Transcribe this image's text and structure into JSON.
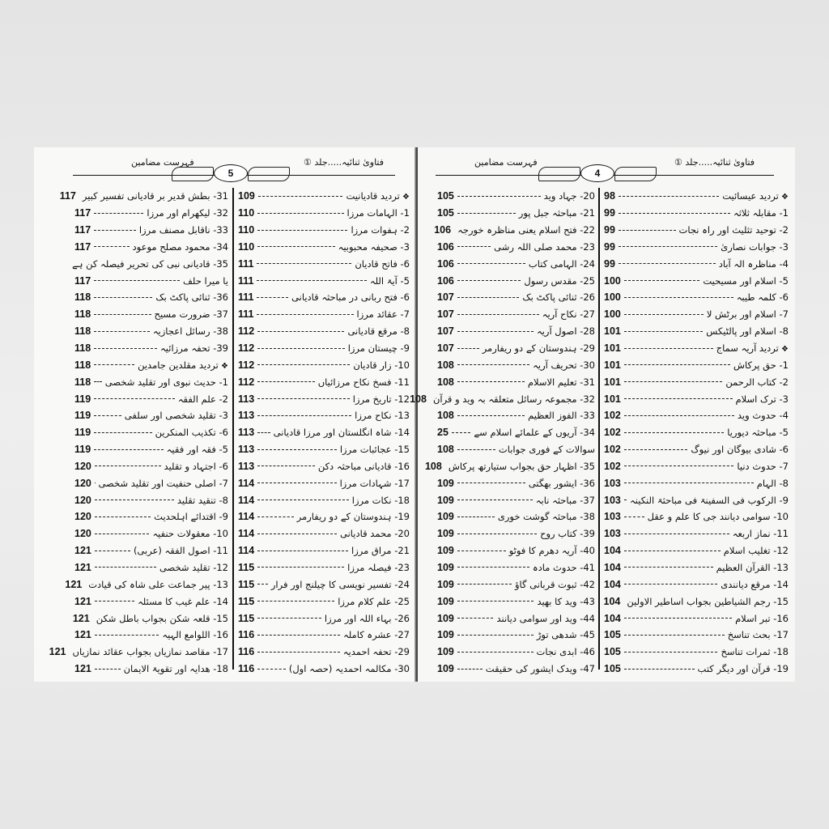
{
  "pages": [
    {
      "page_number": "5",
      "header_title": "فہرست مضامین",
      "book_title": "فتاویٰ ثنائیہ.....جلد ①",
      "right_column": [
        {
          "text": "تردید قادیانیت",
          "page": "109",
          "heading": true
        },
        {
          "text": "1- الہامات مرزا",
          "page": "110"
        },
        {
          "text": "2- ہفوات مرزا",
          "page": "110"
        },
        {
          "text": "3- صحیفہ محبوبیہ",
          "page": "110"
        },
        {
          "text": "6- فاتح قادیان",
          "page": "111"
        },
        {
          "text": "5- آیۃ اللہ",
          "page": "111"
        },
        {
          "text": "6- فتح ربانی در مباحثہ قادیانی",
          "page": "111"
        },
        {
          "text": "7- عقائد مرزا",
          "page": "111"
        },
        {
          "text": "8- مرقع قادیانی",
          "page": "112"
        },
        {
          "text": "9- چیستان مرزا",
          "page": "112"
        },
        {
          "text": "10- زار قادیان",
          "page": "112"
        },
        {
          "text": "11- فسخ نکاح مرزائیاں",
          "page": "112"
        },
        {
          "text": "12- تاریخ مرزا",
          "page": "113"
        },
        {
          "text": "13- نکاح مرزا",
          "page": "113"
        },
        {
          "text": "14- شاہ انگلستان اور مرزا قادیانی",
          "page": "113"
        },
        {
          "text": "15- عجائبات مرزا",
          "page": "113"
        },
        {
          "text": "16- قادیانی مباحثہ دکن",
          "page": "113"
        },
        {
          "text": "17- شہادات مرزا",
          "page": "114"
        },
        {
          "text": "18- نکات مرزا",
          "page": "114"
        },
        {
          "text": "19- ہندوستان کے دو ریفارمر",
          "page": "114"
        },
        {
          "text": "20- محمد قادیانی",
          "page": "114"
        },
        {
          "text": "21- مراق مرزا",
          "page": "114"
        },
        {
          "text": "23- فیصلہ مرزا",
          "page": "115"
        },
        {
          "text": "24- تفسیر نویسی کا چیلنج اور فرار",
          "page": "115"
        },
        {
          "text": "25- علم کلام مرزا",
          "page": "115"
        },
        {
          "text": "26- بہاء اللہ اور مرزا",
          "page": "115"
        },
        {
          "text": "27- عشرہ کاملہ",
          "page": "116"
        },
        {
          "text": "29- تحفہ احمدیہ",
          "page": "116"
        },
        {
          "text": "30- مکالمہ احمدیہ (حصہ اول)",
          "page": "116"
        }
      ],
      "left_column": [
        {
          "text": "31- بطش قدیر بر قادیانی تفسیر کبیر",
          "page": "117"
        },
        {
          "text": "32- لیکھرام اور مرزا",
          "page": "117"
        },
        {
          "text": "33- ناقابل مصنف مرزا",
          "page": "117"
        },
        {
          "text": "34- محمود مصلح موعود",
          "page": "117"
        },
        {
          "text": "35- قادیانی نبی کی تحریر فیصلہ کن ہے",
          "page": ""
        },
        {
          "text": "یا میرا حلف",
          "page": "117"
        },
        {
          "text": "36- ثنائی پاکٹ بک",
          "page": "118"
        },
        {
          "text": "37- ضرورت مسیح",
          "page": "118"
        },
        {
          "text": "38- رسائل اعجازیہ",
          "page": "118"
        },
        {
          "text": "39- تحفہ مرزائیہ",
          "page": "118"
        },
        {
          "text": "تردید مقلدین جامدین",
          "page": "118",
          "heading": true
        },
        {
          "text": "1- حدیث نبوی اور تقلید شخصی",
          "page": "118"
        },
        {
          "text": "2- علم الفقہ",
          "page": "119"
        },
        {
          "text": "3- تقلید شخصی اور سلفی",
          "page": "119"
        },
        {
          "text": "6- تکذیب المنکرین",
          "page": "119"
        },
        {
          "text": "5- فقہ اور فقیہ",
          "page": "119"
        },
        {
          "text": "6- اجتہاد و تقلید",
          "page": "120"
        },
        {
          "text": "7- اصلی حنفیت اور تقلید شخصی",
          "page": "120"
        },
        {
          "text": "8- تنقید تقلید",
          "page": "120"
        },
        {
          "text": "9- اقتدائے اہلحدیث",
          "page": "120"
        },
        {
          "text": "10- معقولات حنفیہ",
          "page": "120"
        },
        {
          "text": "11- اصول الفقہ (عربی)",
          "page": "121"
        },
        {
          "text": "12- تقلید شخصی",
          "page": "121"
        },
        {
          "text": "13- پیر جماعت علی شاہ کی قیادت",
          "page": "121"
        },
        {
          "text": "14- علم غیب کا مسئلہ",
          "page": "121"
        },
        {
          "text": "15- قلعہ شکن بجواب باطل شکن",
          "page": "121"
        },
        {
          "text": "16- اللوامع الہیہ",
          "page": "121"
        },
        {
          "text": "17- مقاصد نمازیاں بجواب عقائد نمازیاں",
          "page": "121"
        },
        {
          "text": "18- ھدایہ اور تقویۃ الایمان",
          "page": "121"
        }
      ]
    },
    {
      "page_number": "4",
      "header_title": "فہرست مضامین",
      "book_title": "فتاویٰ ثنائیہ.....جلد ①",
      "right_column": [
        {
          "text": "تردید عیسائیت",
          "page": "98",
          "heading": true
        },
        {
          "text": "1- مقابلہ ثلاثہ",
          "page": "99"
        },
        {
          "text": "2- توحید تثلیث اور راہ نجات",
          "page": "99"
        },
        {
          "text": "3- جوابات نصاریٰ",
          "page": "99"
        },
        {
          "text": "4- مناظرہ الہ آباد",
          "page": "99"
        },
        {
          "text": "5- اسلام اور مسیحیت",
          "page": "100"
        },
        {
          "text": "6- کلمہ طیبہ",
          "page": "100"
        },
        {
          "text": "7- اسلام اور برٹش لا",
          "page": "100"
        },
        {
          "text": "8- اسلام اور پالٹیکس",
          "page": "101"
        },
        {
          "text": "تردید آریہ سماج",
          "page": "101",
          "heading": true
        },
        {
          "text": "1- حق پرکاش",
          "page": "101"
        },
        {
          "text": "2- کتاب الرحمن",
          "page": "101"
        },
        {
          "text": "3- ترک اسلام",
          "page": "101"
        },
        {
          "text": "4- حدوث وید",
          "page": "102"
        },
        {
          "text": "5- مباحثہ دیوریا",
          "page": "102"
        },
        {
          "text": "6- شادی بیوگان اور نیوگ",
          "page": "102"
        },
        {
          "text": "7- حدوث دنیا",
          "page": "102"
        },
        {
          "text": "8- الہام",
          "page": "103"
        },
        {
          "text": "9- الرکوب فی السفینۃ فی مباحثۃ النکینہ",
          "page": "103"
        },
        {
          "text": "10- سوامی دیانند جی کا علم و عقل",
          "page": "103"
        },
        {
          "text": "11- نماز اربعہ",
          "page": "103"
        },
        {
          "text": "12- تغلیب اسلام",
          "page": "104"
        },
        {
          "text": "13- القرآن العظیم",
          "page": "104"
        },
        {
          "text": "14- مرقع دیانندی",
          "page": "104"
        },
        {
          "text": "15- رجم الشیاطین بجواب اساطیر الاولین",
          "page": "104"
        },
        {
          "text": "16- تبر اسلام",
          "page": "104"
        },
        {
          "text": "17- بحث تناسخ",
          "page": "105"
        },
        {
          "text": "18- ثمرات تناسخ",
          "page": "105"
        },
        {
          "text": "19- قرآن اور دیگر کتب",
          "page": "105"
        }
      ],
      "left_column": [
        {
          "text": "20- جہاد وید",
          "page": "105"
        },
        {
          "text": "21- مباحثہ جبل پور",
          "page": "105"
        },
        {
          "text": "22- فتح اسلام یعنی مناظرہ خورجہ",
          "page": "106"
        },
        {
          "text": "23- محمد صلی اللہ رشی",
          "page": "106"
        },
        {
          "text": "24- الہامی کتاب",
          "page": "106"
        },
        {
          "text": "25- مقدس رسول",
          "page": "106"
        },
        {
          "text": "26- ثنائی پاکٹ بک",
          "page": "107"
        },
        {
          "text": "27- نکاح آریہ",
          "page": "107"
        },
        {
          "text": "28- اصول آریہ",
          "page": "107"
        },
        {
          "text": "29- ہندوستان کے دو ریفارمر",
          "page": "107"
        },
        {
          "text": "30- تحریف آریہ",
          "page": "108"
        },
        {
          "text": "31- تعلیم الاسلام",
          "page": "108"
        },
        {
          "text": "32- مجموعہ رسائل متعلقہ بہ وید و قرآن",
          "page": "108"
        },
        {
          "text": "33- الفوز العظیم",
          "page": "108"
        },
        {
          "text": "34- آریوں کے علمائے اسلام سے",
          "page": "25"
        },
        {
          "text": "سوالات کے فوری جوابات",
          "page": "108"
        },
        {
          "text": "35- اظہار حق بجواب ستیارتھ پرکاش",
          "page": "108"
        },
        {
          "text": "36- ایشور بھگتی",
          "page": "109"
        },
        {
          "text": "37- مباحثہ نابہ",
          "page": "109"
        },
        {
          "text": "38- مباحثہ گوشت خوری",
          "page": "109"
        },
        {
          "text": "39- کتاب روح",
          "page": "109"
        },
        {
          "text": "40- آریہ دھرم کا فوٹو",
          "page": "109"
        },
        {
          "text": "41- حدوث مادہ",
          "page": "109"
        },
        {
          "text": "42- ثبوت قربانی گاؤ",
          "page": "109"
        },
        {
          "text": "43- وید کا بھید",
          "page": "109"
        },
        {
          "text": "44- وید اور سوامی دیانند",
          "page": "109"
        },
        {
          "text": "45- شدھی توڑ",
          "page": "109"
        },
        {
          "text": "46- ابدی نجات",
          "page": "109"
        },
        {
          "text": "47- ویدک ایشور کی حقیقت",
          "page": "109"
        }
      ]
    }
  ]
}
